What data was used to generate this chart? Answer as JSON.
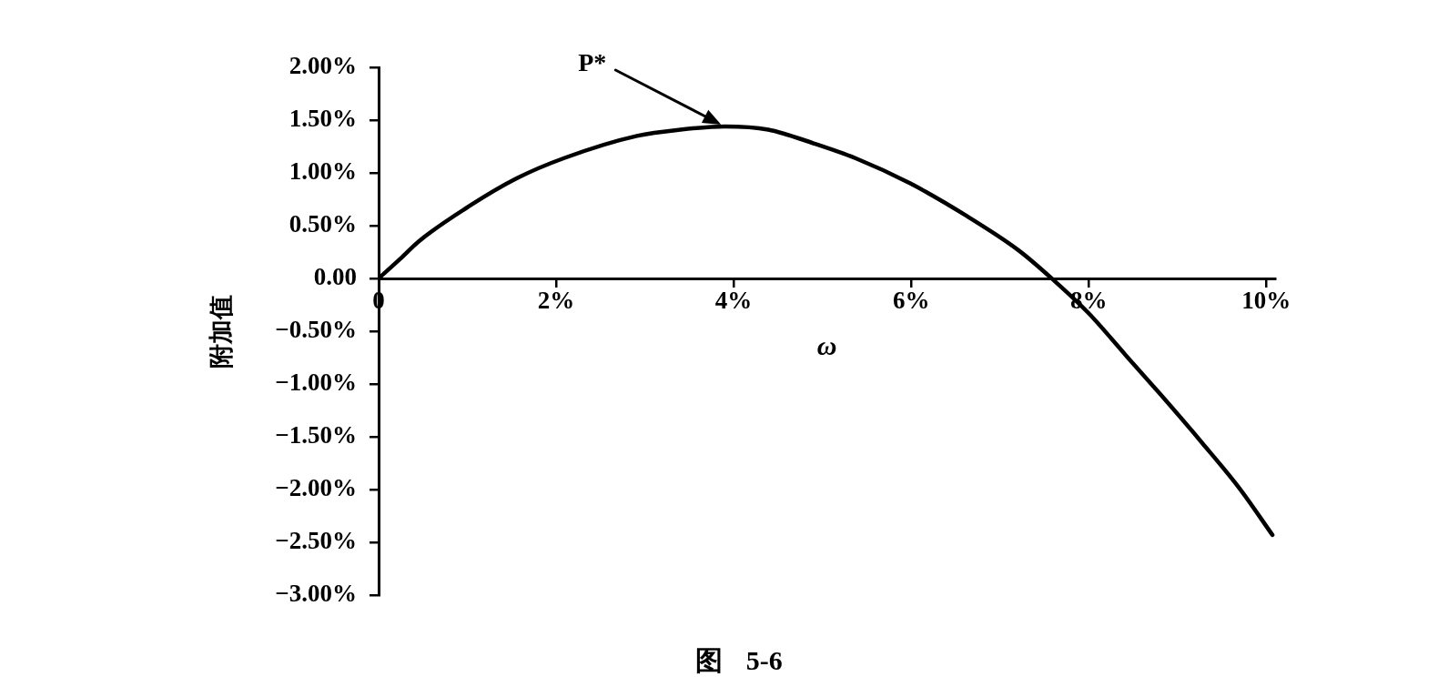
{
  "chart_data": {
    "type": "line",
    "xlabel": "ω",
    "ylabel": "附加值",
    "annotations": [
      "图 5-6",
      "P*"
    ],
    "x": [
      0,
      0.25,
      0.45,
      1.03,
      1.56,
      2.09,
      2.91,
      3.4,
      3.9,
      4.39,
      4.9,
      5.37,
      5.99,
      6.61,
      7.22,
      7.61,
      8.0,
      8.42,
      8.81,
      9.28,
      9.7,
      10.07
    ],
    "series": [
      {
        "color": "#000000",
        "values": [
          0,
          0.19,
          0.35,
          0.69,
          0.95,
          1.14,
          1.35,
          1.41,
          1.44,
          1.41,
          1.28,
          1.14,
          0.9,
          0.6,
          0.26,
          -0.02,
          -0.33,
          -0.73,
          -1.1,
          -1.56,
          -1.99,
          -2.43
        ]
      }
    ],
    "xlim": [
      0,
      10.1
    ],
    "xticks": [
      0,
      {
        "value": 2,
        "label": "2%"
      },
      {
        "value": 4,
        "label": "4%"
      },
      {
        "value": 6,
        "label": "6%"
      },
      {
        "value": 8,
        "label": "8%"
      },
      {
        "value": 10,
        "label": "10%"
      }
    ],
    "ylim": [
      -3,
      2
    ],
    "yticks": [
      {
        "value": -3,
        "label": "−3.00%"
      },
      {
        "value": -2.5,
        "label": "−2.50%"
      },
      {
        "value": -2,
        "label": "−2.00%"
      },
      {
        "value": -1.5,
        "label": "−1.50%"
      },
      {
        "value": -1,
        "label": "−1.00%"
      },
      {
        "value": -0.5,
        "label": "−0.50%"
      },
      {
        "value": 0,
        "label": "0.00"
      },
      {
        "value": 0.5,
        "label": "0.50%"
      },
      {
        "value": 1,
        "label": "1.00%"
      },
      {
        "value": 1.5,
        "label": "1.50%"
      },
      {
        "value": 2,
        "label": "2.00%"
      }
    ],
    "marker": "none",
    "line_style": "solid"
  }
}
